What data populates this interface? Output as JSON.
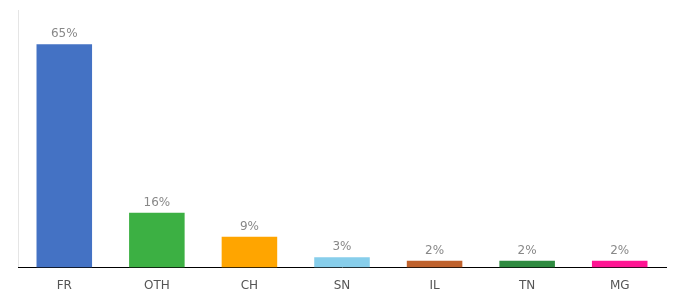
{
  "chart_data": {
    "type": "bar",
    "categories": [
      "FR",
      "OTH",
      "CH",
      "SN",
      "IL",
      "TN",
      "MG"
    ],
    "values": [
      65,
      16,
      9,
      3,
      2,
      2,
      2
    ],
    "value_labels": [
      "65%",
      "16%",
      "9%",
      "3%",
      "2%",
      "2%",
      "2%"
    ],
    "colors": [
      "#4472C4",
      "#3CB043",
      "#FFA500",
      "#87CEEB",
      "#C0622D",
      "#2E8B40",
      "#FF1493"
    ],
    "ylim": [
      0,
      75
    ],
    "grid": false,
    "tick_labels": "x",
    "data_labels": true
  }
}
